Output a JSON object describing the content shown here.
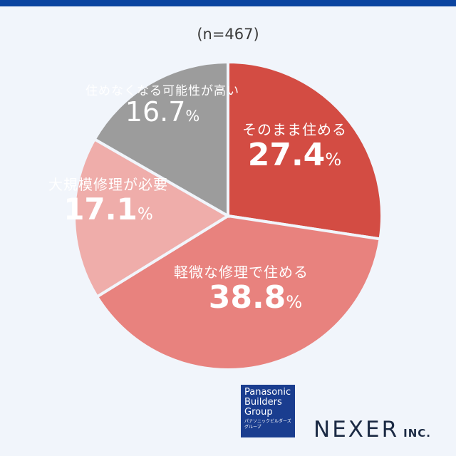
{
  "chart_data": {
    "type": "pie",
    "title": "",
    "subtitle": "(n=467)",
    "start_angle": "12 o'clock",
    "direction": "clockwise",
    "categories": [
      "そのまま住める",
      "軽微な修理で住める",
      "大規模修理が必要",
      "住めなくなる可能性が高い"
    ],
    "values": [
      27.4,
      38.8,
      17.1,
      16.7
    ],
    "unit": "%",
    "colors": [
      "#d34c43",
      "#e8827e",
      "#efadaa",
      "#9c9c9c"
    ],
    "legend": "none (labels inside slices)"
  },
  "header": {
    "sample_size": "(n=467)"
  },
  "slices": [
    {
      "name": "そのまま住める",
      "value": "27.4",
      "pct": "%"
    },
    {
      "name": "軽微な修理で住める",
      "value": "38.8",
      "pct": "%"
    },
    {
      "name": "大規模修理が必要",
      "value": "17.1",
      "pct": "%"
    },
    {
      "name": "住めなくなる可能性が高い",
      "value": "16.7",
      "pct": "%"
    }
  ],
  "footer": {
    "logo_line1": "Panasonic",
    "logo_line2": "Builders",
    "logo_line3": "Group",
    "logo_kana": "パナソニックビルダーズグループ",
    "company": "NEXER",
    "company_suffix": "INC."
  },
  "colors": {
    "topbar": "#0b44a0",
    "background": "#f1f5fb"
  }
}
